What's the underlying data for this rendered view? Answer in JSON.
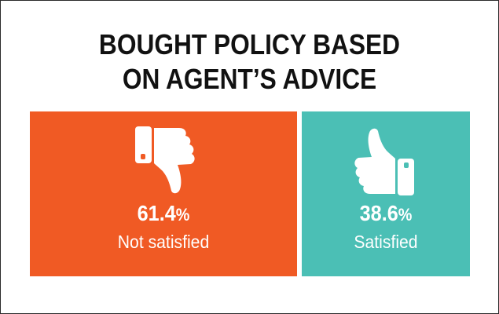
{
  "chart_data": {
    "type": "bar",
    "title": "BOUGHT POLICY BASED ON AGENT’S ADVICE",
    "title_lines": [
      "BOUGHT POLICY BASED",
      "ON AGENT’S ADVICE"
    ],
    "categories": [
      "Not satisfied",
      "Satisfied"
    ],
    "values": [
      61.4,
      38.6
    ],
    "unit": "%",
    "value_labels": [
      "61.4",
      "38.6"
    ],
    "stacked": true,
    "orientation": "horizontal",
    "icons": [
      "thumbs-down-icon",
      "thumbs-up-icon"
    ],
    "colors": [
      "#f05a24",
      "#4bbfb5"
    ],
    "xlabel": "",
    "ylabel": ""
  }
}
